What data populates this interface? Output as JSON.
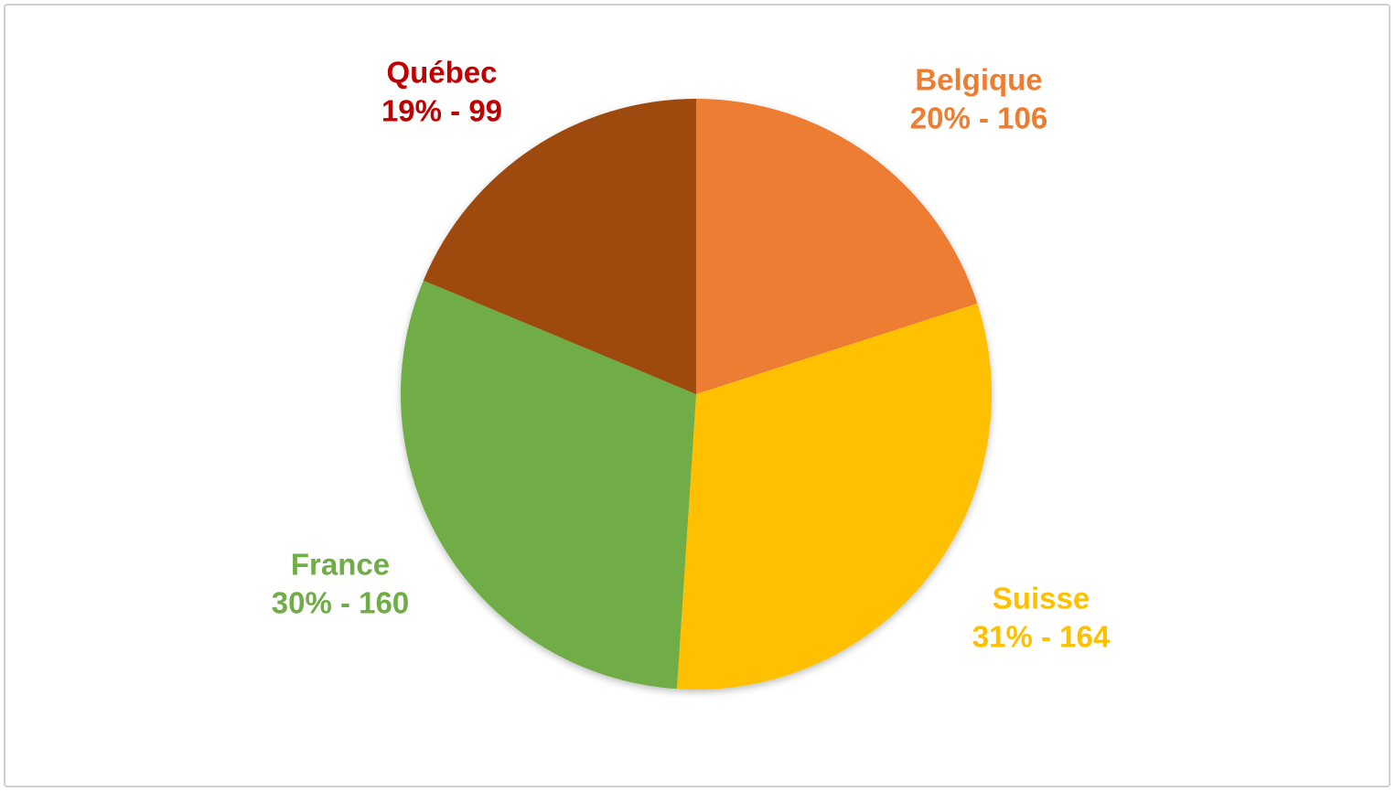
{
  "chart_data": {
    "type": "pie",
    "categories": [
      "Belgique",
      "Suisse",
      "France",
      "Québec"
    ],
    "values": [
      106,
      164,
      160,
      99
    ],
    "value_labels": [
      "20% - 106",
      "31% - 164",
      "30% - 160",
      "19% - 99"
    ],
    "colors": [
      "#ED7D31",
      "#FFC000",
      "#70AD47",
      "#9E480E"
    ],
    "label_colors": [
      "#ED7D31",
      "#FFC000",
      "#70AD47",
      "#C00000"
    ]
  }
}
